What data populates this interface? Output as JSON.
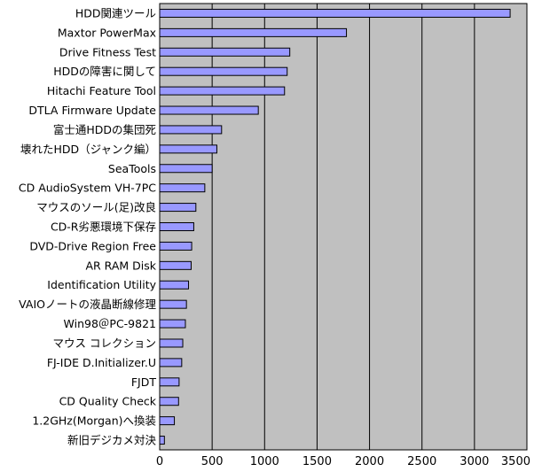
{
  "chart_data": {
    "type": "bar",
    "orientation": "horizontal",
    "categories": [
      "HDD関連ツール",
      "Maxtor PowerMax",
      "Drive Fitness Test",
      "HDDの障害に関して",
      "Hitachi Feature Tool",
      "DTLA Firmware Update",
      "富士通HDDの集団死",
      "壊れたHDD（ジャンク編）",
      "SeaTools",
      "CD AudioSystem VH-7PC",
      "マウスのソール(足)改良",
      "CD-R劣悪環境下保存",
      "DVD-Drive Region Free",
      "AR RAM Disk",
      "Identification Utility",
      "VAIOノートの液晶断線修理",
      "Win98＠PC-9821",
      "マウス コレクション",
      "FJ-IDE D.Initializer.U",
      "FJDT",
      "CD Quality Check",
      "1.2GHz(Morgan)へ換装",
      "新旧デジカメ対決"
    ],
    "values": [
      3340,
      1780,
      1240,
      1215,
      1190,
      940,
      590,
      545,
      500,
      430,
      345,
      325,
      305,
      300,
      275,
      255,
      245,
      220,
      210,
      185,
      180,
      140,
      45
    ],
    "xlim": [
      0,
      3500
    ],
    "xticks": [
      "0",
      "500",
      "1000",
      "1500",
      "2000",
      "2500",
      "3000",
      "3500"
    ],
    "grid": true,
    "colors": {
      "plot_background": "#c0c0c0",
      "bar_fill": "#9999ff",
      "bar_stroke": "#000000",
      "gridline": "#000000"
    }
  }
}
